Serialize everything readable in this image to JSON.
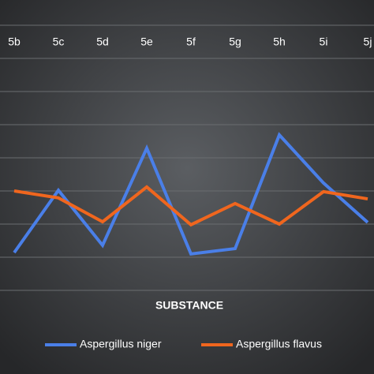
{
  "chart_data": {
    "type": "line",
    "x_label": "SUBSTANCE",
    "categories": [
      "5b",
      "5c",
      "5d",
      "5e",
      "5f",
      "5g",
      "5h",
      "5i",
      "5j"
    ],
    "series": [
      {
        "name": "Aspergillus niger",
        "color": "#4a7fe8",
        "values": [
          1.14,
          3.02,
          1.36,
          4.29,
          1.1,
          1.26,
          4.69,
          3.24,
          2.05
        ]
      },
      {
        "name": "Aspergillus flavus",
        "color": "#f0661e",
        "values": [
          3.0,
          2.79,
          2.07,
          3.12,
          1.98,
          2.62,
          2.0,
          2.98,
          2.76
        ]
      }
    ],
    "ylim": [
      0,
      8
    ],
    "yticks": [
      0,
      1,
      2,
      3,
      4,
      5,
      6,
      7,
      8
    ],
    "grid": true
  }
}
